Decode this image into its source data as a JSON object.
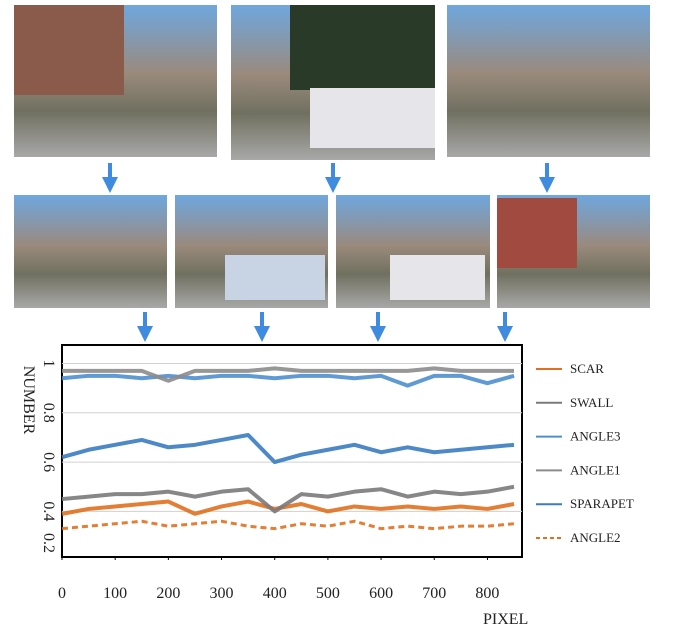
{
  "chart_data": {
    "type": "line",
    "x": [
      0,
      50,
      100,
      150,
      200,
      250,
      300,
      350,
      400,
      450,
      500,
      550,
      600,
      650,
      700,
      750,
      800,
      850
    ],
    "x_label": "PIXEL",
    "y_label": "NUMBER",
    "xlim": [
      0,
      865
    ],
    "xticks": [
      0,
      100,
      200,
      300,
      400,
      500,
      600,
      700,
      800
    ],
    "ylim": [
      0.215,
      1.075
    ],
    "yticks": [
      0.2,
      0.4,
      0.6,
      0.8,
      1
    ],
    "grid": true,
    "legend": "right",
    "series": [
      {
        "name": "SCAR",
        "color": "#e0701f",
        "values": [
          0.39,
          0.41,
          0.42,
          0.43,
          0.44,
          0.39,
          0.42,
          0.44,
          0.41,
          0.43,
          0.4,
          0.42,
          0.41,
          0.42,
          0.41,
          0.42,
          0.41,
          0.43
        ]
      },
      {
        "name": "SWALL",
        "color": "#7a7a7a",
        "values": [
          0.45,
          0.46,
          0.47,
          0.47,
          0.48,
          0.46,
          0.48,
          0.49,
          0.4,
          0.47,
          0.46,
          0.48,
          0.49,
          0.46,
          0.48,
          0.47,
          0.48,
          0.5
        ]
      },
      {
        "name": "ANGLE3",
        "color": "#4f8fd0",
        "values": [
          0.94,
          0.95,
          0.95,
          0.94,
          0.95,
          0.94,
          0.95,
          0.95,
          0.94,
          0.95,
          0.95,
          0.94,
          0.95,
          0.91,
          0.95,
          0.95,
          0.92,
          0.95
        ]
      },
      {
        "name": "ANGLE1",
        "color": "#8c8c8c",
        "values": [
          0.97,
          0.97,
          0.97,
          0.97,
          0.93,
          0.97,
          0.97,
          0.97,
          0.98,
          0.97,
          0.97,
          0.97,
          0.97,
          0.97,
          0.98,
          0.97,
          0.97,
          0.97
        ]
      },
      {
        "name": "SPARAPET",
        "color": "#3a7cc0",
        "values": [
          0.62,
          0.65,
          0.67,
          0.69,
          0.66,
          0.67,
          0.69,
          0.71,
          0.6,
          0.63,
          0.65,
          0.67,
          0.64,
          0.66,
          0.64,
          0.65,
          0.66,
          0.67
        ]
      },
      {
        "name": "ANGLE2",
        "color": "#e0701f",
        "dash": true,
        "values": [
          0.33,
          0.34,
          0.35,
          0.36,
          0.34,
          0.35,
          0.36,
          0.34,
          0.33,
          0.35,
          0.34,
          0.36,
          0.33,
          0.34,
          0.33,
          0.34,
          0.34,
          0.35
        ]
      }
    ]
  }
}
